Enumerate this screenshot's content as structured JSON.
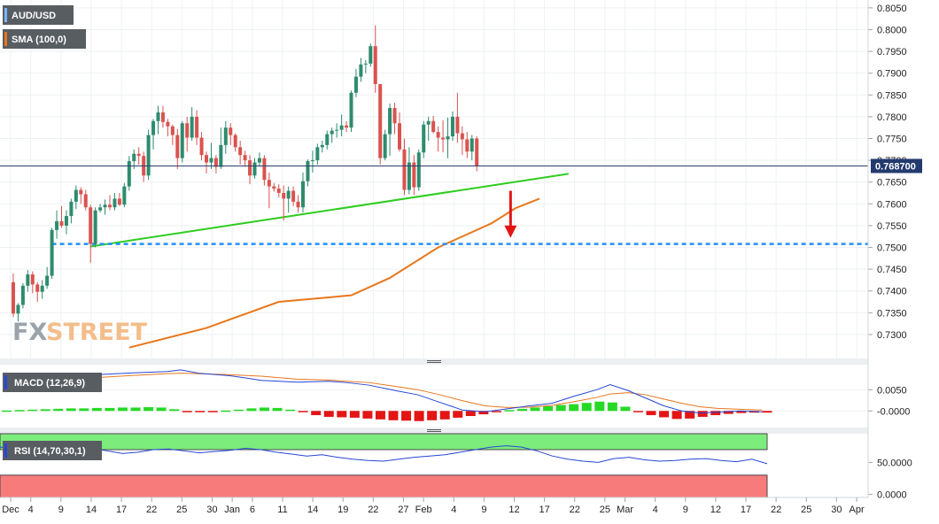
{
  "chart_data": {
    "type": "candlestick",
    "symbol": "AUD/USD",
    "current_price": "0.768700",
    "brand": {
      "fx": "FX",
      "street": "STREET"
    },
    "colors": {
      "up": "#2e8b6e",
      "down": "#d9534f",
      "sma": "#e8771c",
      "trendline": "#2ecc1f",
      "support": "#1e90ff",
      "arrow": "#e31515",
      "macd_line": "#2746d6",
      "signal_line": "#e8771c",
      "hist_pos": "#27d927",
      "hist_neg": "#e31515",
      "rsi_line": "#2746d6",
      "rsi_overbought": "#7cec7c",
      "rsi_oversold": "#f77b7b"
    },
    "price_axis": {
      "ylim": [
        0.7245,
        0.8068
      ],
      "ticks": [
        "0.8050",
        "0.8000",
        "0.7950",
        "0.7900",
        "0.7850",
        "0.7800",
        "0.7750",
        "0.7700",
        "0.7650",
        "0.7600",
        "0.7550",
        "0.7500",
        "0.7450",
        "0.7400",
        "0.7350",
        "0.7300"
      ]
    },
    "x_ticks": [
      {
        "label": "Dec",
        "i": 0
      },
      {
        "label": "4",
        "i": 2
      },
      {
        "label": "9",
        "i": 5
      },
      {
        "label": "14",
        "i": 8
      },
      {
        "label": "17",
        "i": 11
      },
      {
        "label": "22",
        "i": 14
      },
      {
        "label": "25",
        "i": 17
      },
      {
        "label": "30",
        "i": 20
      },
      {
        "label": "Jan",
        "i": 22
      },
      {
        "label": "6",
        "i": 24
      },
      {
        "label": "11",
        "i": 27
      },
      {
        "label": "14",
        "i": 30
      },
      {
        "label": "19",
        "i": 33
      },
      {
        "label": "22",
        "i": 36
      },
      {
        "label": "27",
        "i": 39
      },
      {
        "label": "Feb",
        "i": 41
      },
      {
        "label": "4",
        "i": 44
      },
      {
        "label": "9",
        "i": 47
      },
      {
        "label": "12",
        "i": 50
      },
      {
        "label": "17",
        "i": 53
      },
      {
        "label": "22",
        "i": 56
      },
      {
        "label": "25",
        "i": 59
      },
      {
        "label": "Mar",
        "i": 61
      },
      {
        "label": "4",
        "i": 64
      },
      {
        "label": "9",
        "i": 67
      },
      {
        "label": "12",
        "i": 70
      },
      {
        "label": "17",
        "i": 73
      },
      {
        "label": "22",
        "i": 76
      },
      {
        "label": "25",
        "i": 79
      },
      {
        "label": "30",
        "i": 82
      },
      {
        "label": "Apr",
        "i": 84
      }
    ],
    "candles": [
      [
        0.742,
        0.744,
        0.734,
        0.7348
      ],
      [
        0.7348,
        0.7372,
        0.733,
        0.7368
      ],
      [
        0.7368,
        0.7418,
        0.736,
        0.7412
      ],
      [
        0.7412,
        0.7448,
        0.7398,
        0.7438
      ],
      [
        0.7438,
        0.7445,
        0.7395,
        0.7415
      ],
      [
        0.7415,
        0.742,
        0.7375,
        0.7398
      ],
      [
        0.7398,
        0.7425,
        0.7382,
        0.7412
      ],
      [
        0.7412,
        0.7455,
        0.7405,
        0.7435
      ],
      [
        0.7435,
        0.7545,
        0.7428,
        0.754
      ],
      [
        0.754,
        0.7585,
        0.752,
        0.756
      ],
      [
        0.756,
        0.7595,
        0.7545,
        0.755
      ],
      [
        0.755,
        0.7585,
        0.753,
        0.7572
      ],
      [
        0.7572,
        0.7612,
        0.7555,
        0.7605
      ],
      [
        0.7605,
        0.7642,
        0.7588,
        0.7632
      ],
      [
        0.7632,
        0.7638,
        0.76,
        0.7622
      ],
      [
        0.7622,
        0.7632,
        0.7585,
        0.7592
      ],
      [
        0.7592,
        0.7598,
        0.7465,
        0.7508
      ],
      [
        0.7508,
        0.7592,
        0.75,
        0.7585
      ],
      [
        0.7585,
        0.76,
        0.758,
        0.7592
      ],
      [
        0.7592,
        0.761,
        0.7575,
        0.7598
      ],
      [
        0.7598,
        0.762,
        0.7585,
        0.7592
      ],
      [
        0.7592,
        0.7625,
        0.7585,
        0.7612
      ],
      [
        0.7612,
        0.7625,
        0.7595,
        0.7598
      ],
      [
        0.7598,
        0.7648,
        0.7592,
        0.764
      ],
      [
        0.764,
        0.771,
        0.763,
        0.7698
      ],
      [
        0.7698,
        0.7725,
        0.768,
        0.7715
      ],
      [
        0.7715,
        0.773,
        0.769,
        0.771
      ],
      [
        0.771,
        0.772,
        0.765,
        0.7665
      ],
      [
        0.7665,
        0.777,
        0.7655,
        0.7758
      ],
      [
        0.7758,
        0.7795,
        0.7725,
        0.779
      ],
      [
        0.779,
        0.7825,
        0.776,
        0.781
      ],
      [
        0.781,
        0.7825,
        0.7775,
        0.7788
      ],
      [
        0.7788,
        0.7795,
        0.7755,
        0.7778
      ],
      [
        0.7778,
        0.7782,
        0.7735,
        0.7758
      ],
      [
        0.7758,
        0.7772,
        0.768,
        0.7705
      ],
      [
        0.7705,
        0.779,
        0.7695,
        0.7785
      ],
      [
        0.7785,
        0.78,
        0.772,
        0.7752
      ],
      [
        0.7752,
        0.7822,
        0.7745,
        0.78
      ],
      [
        0.78,
        0.7815,
        0.7735,
        0.7752
      ],
      [
        0.7752,
        0.7765,
        0.77,
        0.7712
      ],
      [
        0.7712,
        0.772,
        0.767,
        0.7695
      ],
      [
        0.7695,
        0.774,
        0.768,
        0.7705
      ],
      [
        0.7705,
        0.7712,
        0.767,
        0.7685
      ],
      [
        0.7685,
        0.7775,
        0.768,
        0.7735
      ],
      [
        0.7735,
        0.779,
        0.7715,
        0.7775
      ],
      [
        0.7775,
        0.7785,
        0.7735,
        0.7758
      ],
      [
        0.7758,
        0.7762,
        0.772,
        0.773
      ],
      [
        0.773,
        0.7745,
        0.769,
        0.7712
      ],
      [
        0.7712,
        0.7722,
        0.7685,
        0.77
      ],
      [
        0.77,
        0.7712,
        0.7645,
        0.7665
      ],
      [
        0.7665,
        0.7705,
        0.7658,
        0.7695
      ],
      [
        0.7695,
        0.7718,
        0.7685,
        0.7705
      ],
      [
        0.7705,
        0.7712,
        0.7642,
        0.7655
      ],
      [
        0.7655,
        0.7672,
        0.759,
        0.764
      ],
      [
        0.764,
        0.7648,
        0.7628,
        0.7635
      ],
      [
        0.7635,
        0.7645,
        0.7615,
        0.7625
      ],
      [
        0.7625,
        0.7642,
        0.7562,
        0.7612
      ],
      [
        0.7612,
        0.764,
        0.758,
        0.763
      ],
      [
        0.763,
        0.764,
        0.7595,
        0.7605
      ],
      [
        0.7605,
        0.762,
        0.758,
        0.7592
      ],
      [
        0.7592,
        0.7672,
        0.758,
        0.7652
      ],
      [
        0.7652,
        0.7702,
        0.764,
        0.7698
      ],
      [
        0.7698,
        0.7722,
        0.7672,
        0.77
      ],
      [
        0.77,
        0.7738,
        0.769,
        0.773
      ],
      [
        0.773,
        0.7745,
        0.7718,
        0.7735
      ],
      [
        0.7735,
        0.7768,
        0.7725,
        0.776
      ],
      [
        0.776,
        0.7775,
        0.774,
        0.7768
      ],
      [
        0.7768,
        0.7785,
        0.7752,
        0.777
      ],
      [
        0.777,
        0.7805,
        0.7755,
        0.778
      ],
      [
        0.778,
        0.779,
        0.7765,
        0.7775
      ],
      [
        0.7775,
        0.786,
        0.7765,
        0.7855
      ],
      [
        0.7855,
        0.791,
        0.7845,
        0.7892
      ],
      [
        0.7892,
        0.7935,
        0.788,
        0.792
      ],
      [
        0.792,
        0.793,
        0.79,
        0.7922
      ],
      [
        0.7922,
        0.7968,
        0.7915,
        0.7962
      ],
      [
        0.7962,
        0.801,
        0.7855,
        0.7875
      ],
      [
        0.7875,
        0.7875,
        0.769,
        0.7705
      ],
      [
        0.7705,
        0.777,
        0.77,
        0.776
      ],
      [
        0.776,
        0.783,
        0.771,
        0.782
      ],
      [
        0.782,
        0.7832,
        0.776,
        0.7785
      ],
      [
        0.7785,
        0.781,
        0.772,
        0.7725
      ],
      [
        0.7725,
        0.775,
        0.762,
        0.7632
      ],
      [
        0.7632,
        0.773,
        0.7622,
        0.7695
      ],
      [
        0.7695,
        0.7712,
        0.762,
        0.7638
      ],
      [
        0.7638,
        0.7725,
        0.763,
        0.7718
      ],
      [
        0.7718,
        0.779,
        0.7705,
        0.7782
      ],
      [
        0.7782,
        0.78,
        0.7745,
        0.779
      ],
      [
        0.779,
        0.7802,
        0.7762,
        0.7765
      ],
      [
        0.7765,
        0.7778,
        0.772,
        0.7752
      ],
      [
        0.7752,
        0.7792,
        0.7718,
        0.7748
      ],
      [
        0.7748,
        0.7798,
        0.7705,
        0.7755
      ],
      [
        0.7755,
        0.7812,
        0.7745,
        0.78
      ],
      [
        0.78,
        0.7855,
        0.774,
        0.7762
      ],
      [
        0.7762,
        0.7778,
        0.7712,
        0.7748
      ],
      [
        0.7748,
        0.7765,
        0.7705,
        0.772
      ],
      [
        0.772,
        0.7758,
        0.77,
        0.775
      ],
      [
        0.775,
        0.7755,
        0.7675,
        0.7687
      ]
    ],
    "sma": {
      "label": "SMA (100,0)",
      "points": [
        [
          24,
          0.727
        ],
        [
          40,
          0.7315
        ],
        [
          55,
          0.7375
        ],
        [
          70,
          0.739
        ],
        [
          78,
          0.743
        ],
        [
          88,
          0.75
        ],
        [
          94,
          0.753
        ],
        [
          99,
          0.7555
        ],
        [
          104,
          0.759
        ],
        [
          109,
          0.7612
        ]
      ]
    },
    "trendline": {
      "from": [
        16,
        0.7502
      ],
      "to": [
        115,
        0.7669
      ]
    },
    "support": {
      "level": 0.7508,
      "from_index": 8
    },
    "arrow": {
      "index": 103,
      "from": 0.763,
      "to": 0.753
    },
    "macd": {
      "label": "MACD (12,26,9)",
      "ylim": [
        -0.0035,
        0.0105
      ],
      "ticks": [
        "0.0050",
        "-0.0000"
      ],
      "macd_line": [
        [
          20,
          0.0085
        ],
        [
          30,
          0.009
        ],
        [
          37,
          0.0093
        ],
        [
          40,
          0.0097
        ],
        [
          44,
          0.0089
        ],
        [
          51,
          0.0083
        ],
        [
          55,
          0.0077
        ],
        [
          58,
          0.0072
        ],
        [
          66,
          0.0068
        ],
        [
          73,
          0.007
        ],
        [
          77,
          0.0067
        ],
        [
          82,
          0.0061
        ],
        [
          88,
          0.0048
        ],
        [
          93,
          0.0038
        ],
        [
          98,
          0.002
        ],
        [
          103,
          0.0002
        ],
        [
          108,
          -0.0002
        ],
        [
          113,
          0.0005
        ],
        [
          118,
          0.0012
        ],
        [
          123,
          0.0018
        ],
        [
          128,
          0.0035
        ],
        [
          133,
          0.005
        ],
        [
          136,
          0.0062
        ],
        [
          140,
          0.0048
        ],
        [
          144,
          0.003
        ],
        [
          148,
          0.0012
        ],
        [
          152,
          0.0
        ],
        [
          156,
          -0.0005
        ],
        [
          160,
          -0.0003
        ],
        [
          165,
          0.0
        ],
        [
          170,
          -0.0002
        ]
      ],
      "signal_line": [
        [
          20,
          0.0078
        ],
        [
          30,
          0.0084
        ],
        [
          37,
          0.0088
        ],
        [
          40,
          0.0089
        ],
        [
          50,
          0.0086
        ],
        [
          58,
          0.0082
        ],
        [
          66,
          0.0075
        ],
        [
          73,
          0.0073
        ],
        [
          77,
          0.007
        ],
        [
          82,
          0.0067
        ],
        [
          88,
          0.0058
        ],
        [
          93,
          0.005
        ],
        [
          98,
          0.0038
        ],
        [
          103,
          0.0024
        ],
        [
          108,
          0.0012
        ],
        [
          113,
          0.0008
        ],
        [
          118,
          0.0009
        ],
        [
          123,
          0.0013
        ],
        [
          128,
          0.0022
        ],
        [
          133,
          0.0032
        ],
        [
          136,
          0.004
        ],
        [
          140,
          0.0043
        ],
        [
          144,
          0.0038
        ],
        [
          148,
          0.0028
        ],
        [
          152,
          0.0018
        ],
        [
          156,
          0.001
        ],
        [
          160,
          0.0006
        ],
        [
          165,
          0.0004
        ],
        [
          170,
          0.0002
        ]
      ],
      "histogram": [
        0.0001,
        0.0002,
        0.0003,
        0.0004,
        0.0005,
        0.0006,
        0.0006,
        0.0007,
        0.0007,
        0.0008,
        0.0008,
        0.0009,
        0.0008,
        0.0004,
        -0.0001,
        -0.0002,
        -0.0002,
        0.0001,
        0.0003,
        0.0006,
        0.0008,
        0.0007,
        0.0003,
        -0.0002,
        -0.001,
        -0.0014,
        -0.0015,
        -0.0016,
        -0.0018,
        -0.002,
        -0.0022,
        -0.0023,
        -0.0024,
        -0.0022,
        -0.002,
        -0.0016,
        -0.0012,
        -0.0008,
        -0.0003,
        0.0002,
        0.0005,
        0.0008,
        0.0011,
        0.0014,
        0.0016,
        0.0019,
        0.0022,
        0.002,
        0.001,
        -0.0003,
        -0.001,
        -0.0015,
        -0.0019,
        -0.0018,
        -0.0014,
        -0.001,
        -0.0007,
        -0.0005,
        -0.0004,
        -0.0004
      ]
    },
    "rsi": {
      "label": "RSI (14,70,30,1)",
      "ylim": [
        -5,
        95
      ],
      "ticks": [
        "50.0000",
        "0.0000"
      ],
      "overbought": 70,
      "oversold": 30,
      "values": [
        74,
        72,
        73,
        70,
        69,
        70,
        72,
        68,
        64,
        66,
        70,
        71,
        68,
        65,
        67,
        69,
        72,
        70,
        66,
        63,
        60,
        62,
        58,
        55,
        53,
        52,
        55,
        58,
        60,
        62,
        66,
        70,
        74,
        76,
        74,
        68,
        60,
        55,
        52,
        50,
        56,
        58,
        54,
        52,
        53,
        55,
        56,
        53,
        51,
        55,
        48
      ]
    }
  }
}
